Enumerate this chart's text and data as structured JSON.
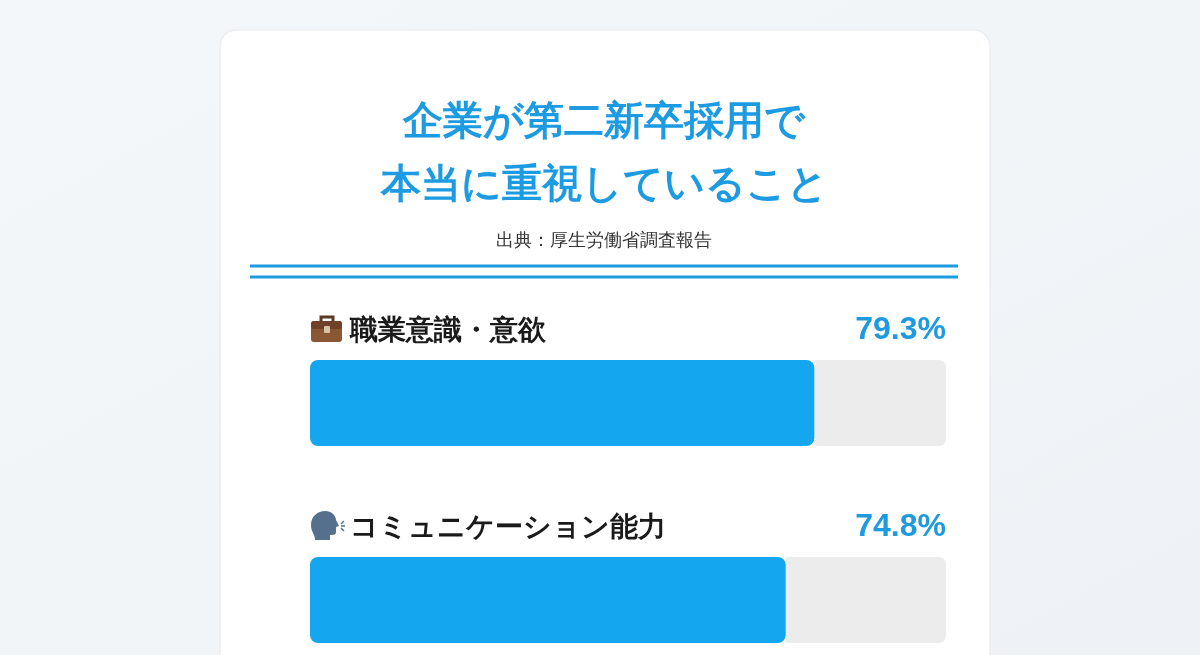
{
  "chart_data": {
    "type": "bar",
    "orientation": "horizontal",
    "title": "企業が第二新卒採用で本当に重視していること",
    "annotations": [
      "出典：厚生労働省調査報告"
    ],
    "categories": [
      "職業意識・意欲",
      "コミュニケーション能力"
    ],
    "values": [
      79.3,
      74.8
    ],
    "color": "#14a6ef",
    "value_labels": [
      "79.3%",
      "74.8%"
    ],
    "xlim": [
      0,
      100
    ]
  }
}
